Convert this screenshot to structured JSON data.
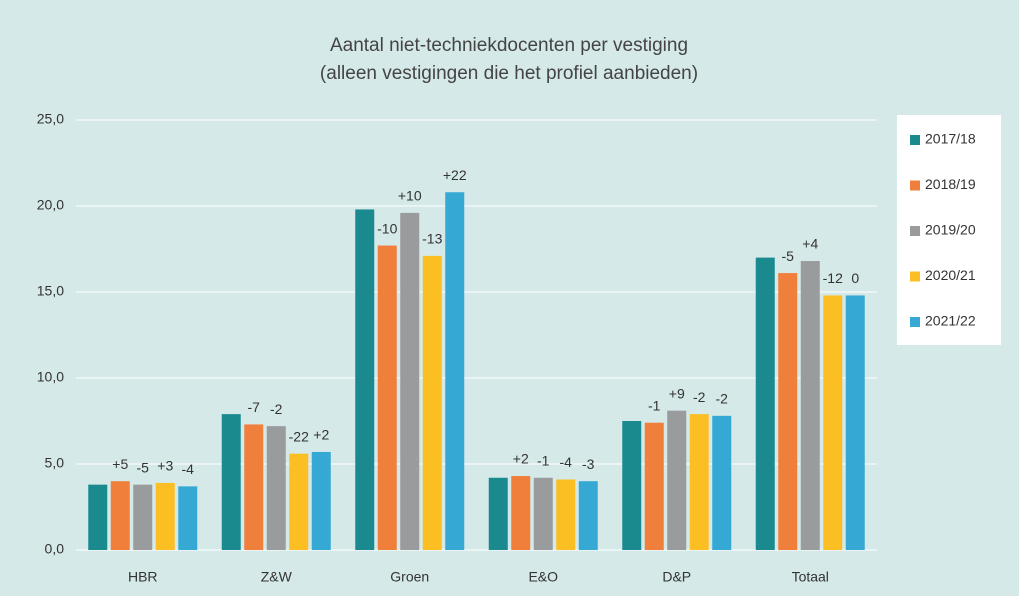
{
  "chart_data": {
    "type": "bar",
    "title": [
      "Aantal niet-techniekdocenten per vestiging",
      "(alleen vestigingen die het profiel aanbieden)"
    ],
    "categories": [
      "HBR",
      "Z&W",
      "Groen",
      "E&O",
      "D&P",
      "Totaal"
    ],
    "series": [
      {
        "name": "2017/18",
        "color": "#1b8a8f",
        "values": [
          3.8,
          7.9,
          19.8,
          4.2,
          7.5,
          17.0
        ]
      },
      {
        "name": "2018/19",
        "color": "#f07f3c",
        "values": [
          4.0,
          7.3,
          17.7,
          4.3,
          7.4,
          16.1
        ],
        "labels": [
          "+5",
          "-7",
          "-10",
          "+2",
          "-1",
          "-5"
        ]
      },
      {
        "name": "2019/20",
        "color": "#9a9b9d",
        "values": [
          3.8,
          7.2,
          19.6,
          4.2,
          8.1,
          16.8
        ],
        "labels": [
          "-5",
          "-2",
          "+10",
          "-1",
          "+9",
          "+4"
        ]
      },
      {
        "name": "2020/21",
        "color": "#fbbf24",
        "values": [
          3.9,
          5.6,
          17.1,
          4.1,
          7.9,
          14.8
        ],
        "labels": [
          "+3",
          "-22",
          "-13",
          "-4",
          "-2",
          "-12"
        ]
      },
      {
        "name": "2021/22",
        "color": "#35a9d4",
        "values": [
          3.7,
          5.7,
          20.8,
          4.0,
          7.8,
          14.8
        ],
        "labels": [
          "-4",
          "+2",
          "+22",
          "-3",
          "-2",
          "0"
        ]
      }
    ],
    "ylim": [
      0,
      25
    ],
    "yticks": [
      {
        "value": 0,
        "label": "0,0"
      },
      {
        "value": 5,
        "label": "5,0"
      },
      {
        "value": 10,
        "label": "10,0"
      },
      {
        "value": 15,
        "label": "15,0"
      },
      {
        "value": 20,
        "label": "20,0"
      },
      {
        "value": 25,
        "label": "25,0"
      }
    ],
    "grid": true,
    "legend": "right"
  }
}
